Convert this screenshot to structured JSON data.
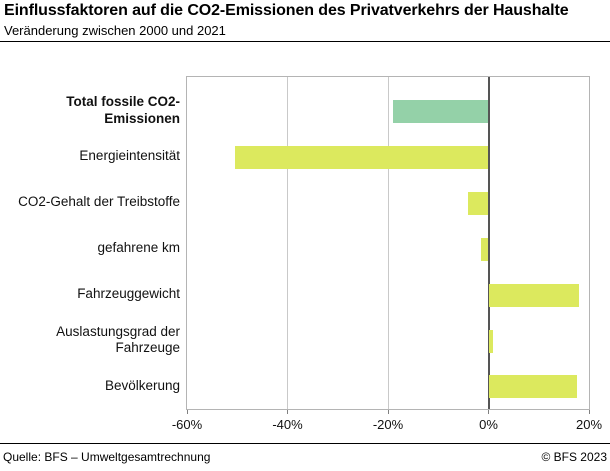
{
  "header": {
    "title": "Einflussfaktoren auf die CO2-Emissionen des Privatverkehrs der Haushalte",
    "subtitle": "Veränderung zwischen 2000 und 2021"
  },
  "footer": {
    "source": "Quelle: BFS – Umweltgesamtrechnung",
    "copyright": "© BFS 2023"
  },
  "chart_data": {
    "type": "bar",
    "orientation": "horizontal",
    "title": "Einflussfaktoren auf die CO2-Emissionen des Privatverkehrs der Haushalte",
    "subtitle": "Veränderung zwischen 2000 und 2021",
    "unit": "%",
    "xlim": [
      -60,
      20
    ],
    "xticks": [
      {
        "value": -60,
        "label": "-60%"
      },
      {
        "value": -40,
        "label": "-40%"
      },
      {
        "value": -20,
        "label": "-20%"
      },
      {
        "value": 0,
        "label": "0%"
      },
      {
        "value": 20,
        "label": "20%"
      }
    ],
    "grid": true,
    "legend": false,
    "categories": [
      "Total fossile CO2-Emissionen",
      "Energieintensität",
      "CO2-Gehalt der Treibstoffe",
      "gefahrene km",
      "Fahrzeuggewicht",
      "Auslastungsgrad der Fahrzeuge",
      "Bevölkerung"
    ],
    "values": [
      -19,
      -50.5,
      -4,
      -1.5,
      18,
      0.8,
      17.7
    ],
    "points": [
      {
        "label": "Total fossile CO2-Emissionen",
        "value": -19,
        "color": "#94d1a8",
        "bold": true
      },
      {
        "label": "Energieintensität",
        "value": -50.5,
        "color": "#dce95e",
        "bold": false
      },
      {
        "label": "CO2-Gehalt der Treibstoffe",
        "value": -4,
        "color": "#dce95e",
        "bold": false
      },
      {
        "label": "gefahrene km",
        "value": -1.5,
        "color": "#dce95e",
        "bold": false
      },
      {
        "label": "Fahrzeuggewicht",
        "value": 18,
        "color": "#dce95e",
        "bold": false
      },
      {
        "label": "Auslastungsgrad der Fahrzeuge",
        "value": 0.8,
        "color": "#dce95e",
        "bold": false
      },
      {
        "label": "Bevölkerung",
        "value": 17.7,
        "color": "#dce95e",
        "bold": false
      }
    ],
    "colors": {
      "total_bar": "#94d1a8",
      "factor_bar": "#dce95e",
      "gridline": "#c9c9c9",
      "zero_line": "#555555",
      "plot_border": "#b4b4b4",
      "tick": "#808080"
    }
  }
}
